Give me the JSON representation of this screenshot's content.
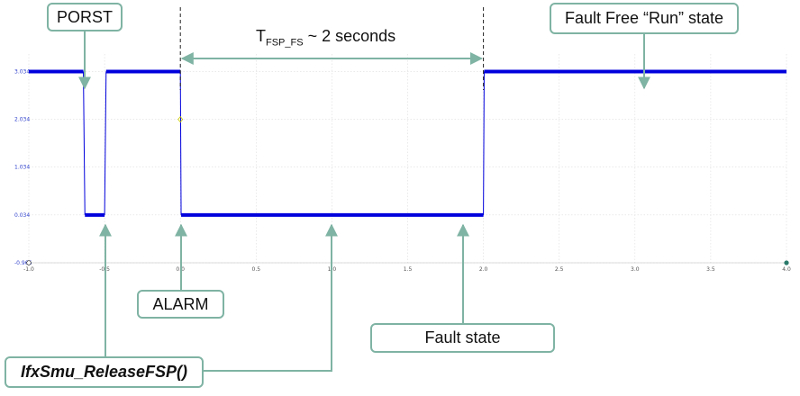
{
  "chart_data": {
    "type": "line",
    "x_ticks": [
      "-1.0",
      "-0.5",
      "0.0",
      "0.5",
      "1.0",
      "1.5",
      "2.0",
      "2.5",
      "3.0",
      "3.5",
      "4.0"
    ],
    "y_ticks": [
      "-0.966",
      "0.034",
      "1.034",
      "2.034",
      "3.034"
    ],
    "xlim": [
      -1.0,
      4.0
    ],
    "ylim": [
      -0.966,
      3.4
    ],
    "grid": true,
    "series": [
      {
        "color": "#0000dd",
        "x": [
          -1.0,
          -0.64,
          -0.63,
          -0.5,
          -0.49,
          0.0,
          0.005,
          2.0,
          2.005,
          4.0
        ],
        "y": [
          3.034,
          3.034,
          0.034,
          0.034,
          3.034,
          3.034,
          0.034,
          0.034,
          3.034,
          3.034
        ]
      }
    ],
    "markers": [
      {
        "x": 0.0,
        "y": 2.034,
        "color": "#c8c800"
      },
      {
        "x": -1.0,
        "y": -0.966,
        "color": "#000000"
      },
      {
        "x": 4.0,
        "y": -0.966,
        "color": "#2a7a6a"
      }
    ],
    "span": {
      "x_start": 0.0,
      "x_end": 2.0
    }
  },
  "labels": {
    "porst": "PORST",
    "alarm": "ALARM",
    "release": "IfxSmu_ReleaseFSP()",
    "fault_state": "Fault state",
    "run_state": "Fault Free “Run” state",
    "span_prefix": "T",
    "span_sub": "FSP_FS",
    "span_suffix": " ~ 2 seconds"
  },
  "colors": {
    "signal": "#0000dd",
    "callout_border": "#7fb3a3",
    "arrow": "#7fb3a3"
  }
}
